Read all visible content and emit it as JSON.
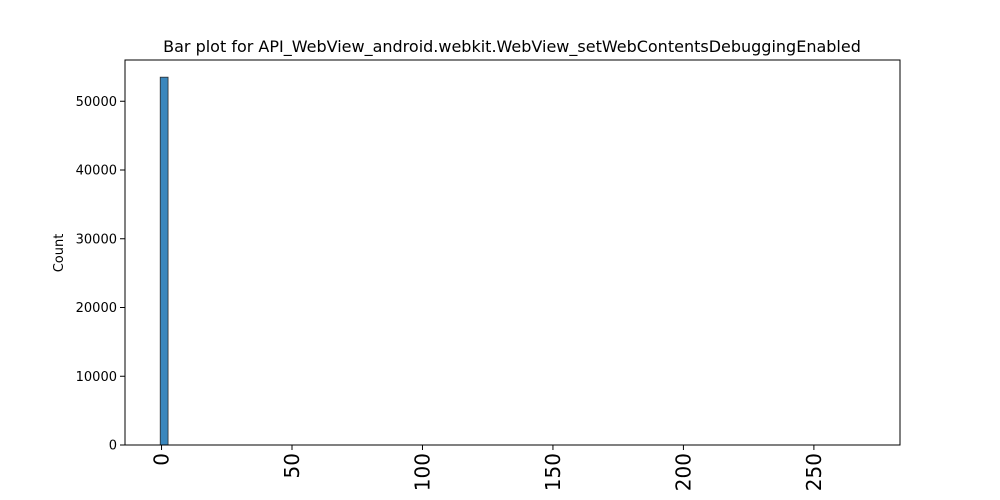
{
  "chart_data": {
    "type": "bar",
    "title": "Bar plot for API_WebView_android.webkit.WebView_setWebContentsDebuggingEnabled",
    "xlabel": "",
    "ylabel": "Count",
    "xlim": [
      -14,
      283
    ],
    "ylim": [
      0,
      56000
    ],
    "xticks": [
      0,
      50,
      100,
      150,
      200,
      250
    ],
    "yticks": [
      0,
      10000,
      20000,
      30000,
      40000,
      50000
    ],
    "bars": [
      {
        "x_start": -0.5,
        "x_end": 2.5,
        "value": 53500
      }
    ],
    "bar_color": "#3a87bd",
    "grid": false,
    "legend": "none"
  }
}
